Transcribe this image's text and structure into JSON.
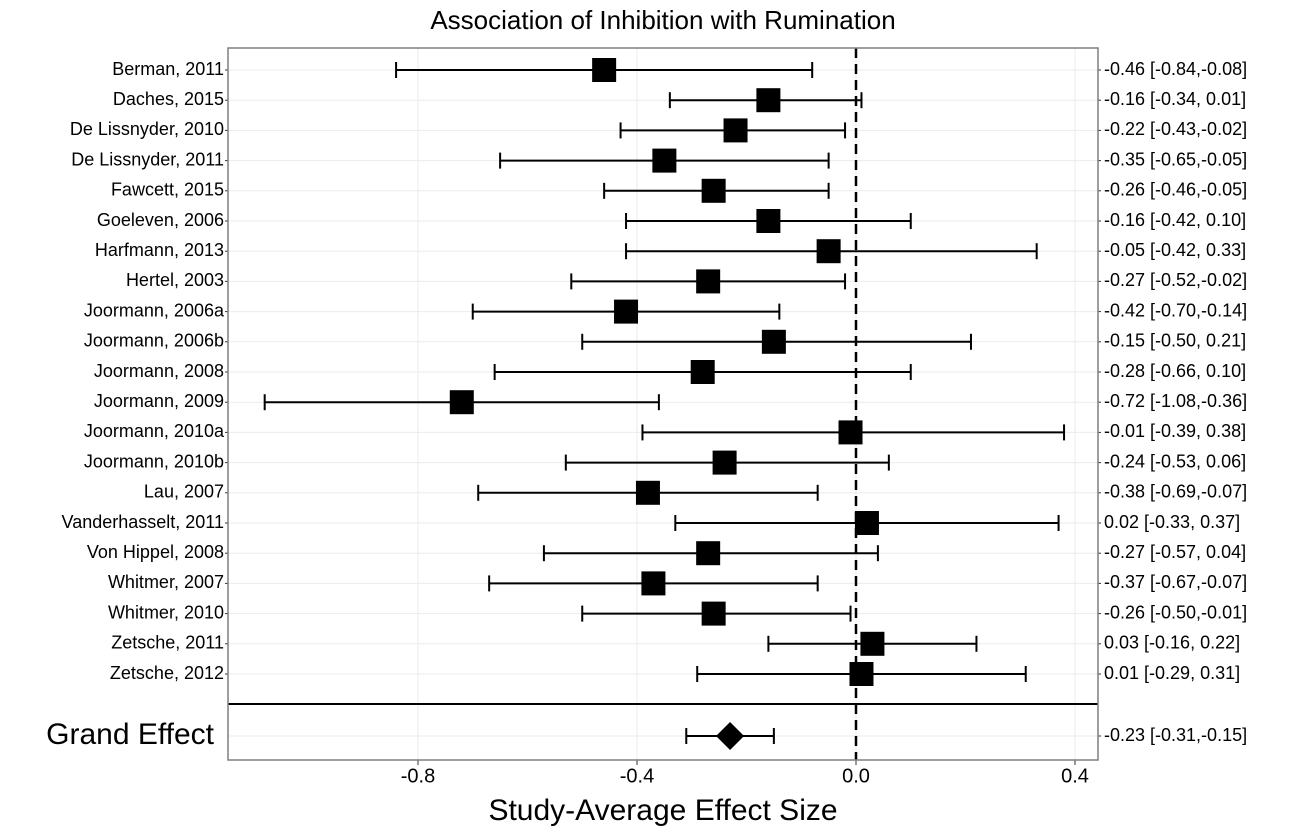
{
  "chart_data": {
    "type": "forest",
    "title": "Association of Inhibition with Rumination",
    "x_label": "Study-Average Effect Size",
    "categories": [
      "Berman, 2011",
      "Daches, 2015",
      "De Lissnyder, 2010",
      "De Lissnyder, 2011",
      "Fawcett, 2015",
      "Goeleven, 2006",
      "Harfmann, 2013",
      "Hertel, 2003",
      "Joormann, 2006a",
      "Joormann, 2006b",
      "Joormann, 2008",
      "Joormann, 2009",
      "Joormann, 2010a",
      "Joormann, 2010b",
      "Lau, 2007",
      "Vanderhasselt, 2011",
      "Von Hippel, 2008",
      "Whitmer, 2007",
      "Whitmer, 2010",
      "Zetsche, 2011",
      "Zetsche, 2012"
    ],
    "values": [
      -0.46,
      -0.16,
      -0.22,
      -0.35,
      -0.26,
      -0.16,
      -0.05,
      -0.27,
      -0.42,
      -0.15,
      -0.28,
      -0.72,
      -0.01,
      -0.24,
      -0.38,
      0.02,
      -0.27,
      -0.37,
      -0.26,
      0.03,
      0.01
    ],
    "lower": [
      -0.84,
      -0.34,
      -0.43,
      -0.65,
      -0.46,
      -0.42,
      -0.42,
      -0.52,
      -0.7,
      -0.5,
      -0.66,
      -1.08,
      -0.39,
      -0.53,
      -0.69,
      -0.33,
      -0.57,
      -0.67,
      -0.5,
      -0.16,
      -0.29
    ],
    "upper": [
      -0.08,
      0.01,
      -0.02,
      -0.05,
      -0.05,
      0.1,
      0.33,
      -0.02,
      -0.14,
      0.21,
      0.1,
      -0.36,
      0.38,
      0.06,
      -0.07,
      0.37,
      0.04,
      -0.07,
      -0.01,
      0.22,
      0.31
    ],
    "value_labels": [
      "-0.46 [-0.84,-0.08]",
      "-0.16 [-0.34, 0.01]",
      "-0.22 [-0.43,-0.02]",
      "-0.35 [-0.65,-0.05]",
      "-0.26 [-0.46,-0.05]",
      "-0.16 [-0.42, 0.10]",
      "-0.05 [-0.42, 0.33]",
      "-0.27 [-0.52,-0.02]",
      "-0.42 [-0.70,-0.14]",
      "-0.15 [-0.50, 0.21]",
      "-0.28 [-0.66, 0.10]",
      "-0.72 [-1.08,-0.36]",
      "-0.01 [-0.39, 0.38]",
      "-0.24 [-0.53, 0.06]",
      "-0.38 [-0.69,-0.07]",
      "0.02 [-0.33, 0.37]",
      "-0.27 [-0.57, 0.04]",
      "-0.37 [-0.67,-0.07]",
      "-0.26 [-0.50,-0.01]",
      "0.03 [-0.16, 0.22]",
      "0.01 [-0.29, 0.31]"
    ],
    "summary": {
      "label": "Grand Effect",
      "value": -0.23,
      "lower": -0.31,
      "upper": -0.15,
      "value_label": "-0.23 [-0.31,-0.15]"
    },
    "xlim": [
      -1.147,
      0.442
    ],
    "xticks": [
      -0.8,
      -0.4,
      {
        "value": 0,
        "label": "0.0"
      },
      0.4
    ],
    "reference_line": 0,
    "grid": true,
    "color": "#000000"
  }
}
